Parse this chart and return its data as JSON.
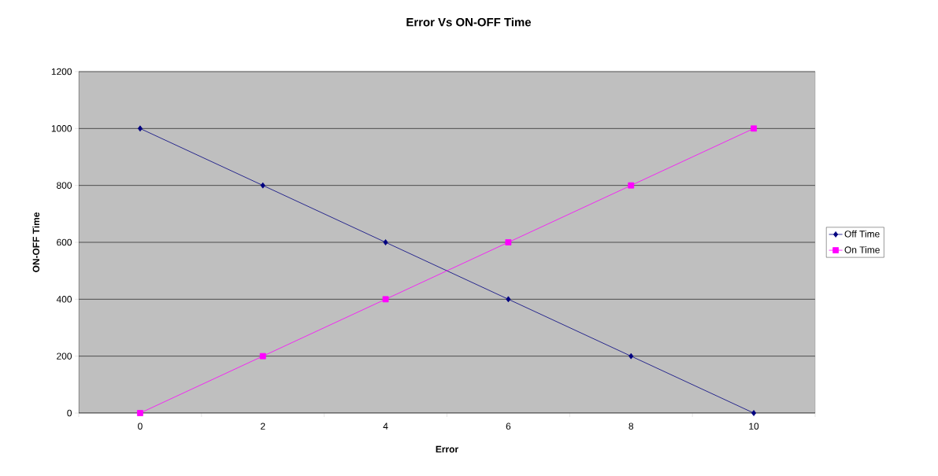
{
  "chart_data": {
    "type": "line",
    "title": "Error Vs ON-OFF Time",
    "xlabel": "Error",
    "ylabel": "ON-OFF Time",
    "categories": [
      "0",
      "2",
      "4",
      "6",
      "8",
      "10"
    ],
    "series": [
      {
        "name": "Off Time",
        "color": "#000080",
        "marker": "diamond",
        "values": [
          1000,
          800,
          600,
          400,
          200,
          0
        ]
      },
      {
        "name": "On Time",
        "color": "#ff00ff",
        "marker": "square",
        "values": [
          0,
          200,
          400,
          600,
          800,
          1000
        ]
      }
    ],
    "ylim": [
      0,
      1200
    ],
    "yticks": [
      0,
      200,
      400,
      600,
      800,
      1000,
      1200
    ],
    "grid": "y",
    "legend": "right",
    "line_style": "solid"
  }
}
